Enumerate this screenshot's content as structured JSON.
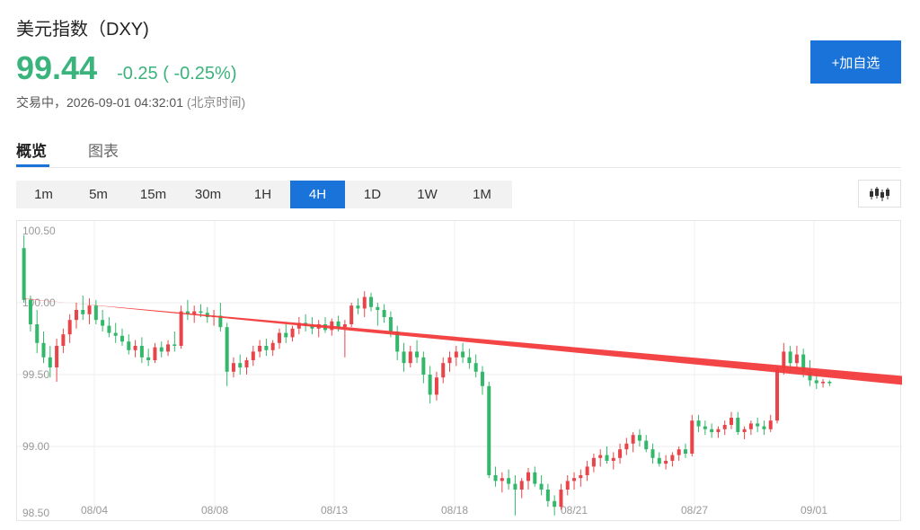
{
  "header": {
    "title": "美元指数（DXY)",
    "price": "99.44",
    "change": "-0.25 ( -0.25%)",
    "status_label": "交易中，",
    "timestamp": "2026-09-01 04:32:01",
    "timezone": "(北京时间)",
    "add_button": "+加自选"
  },
  "tabs": [
    {
      "label": "概览",
      "active": true
    },
    {
      "label": "图表",
      "active": false
    }
  ],
  "periods": [
    {
      "label": "1m",
      "active": false
    },
    {
      "label": "5m",
      "active": false
    },
    {
      "label": "15m",
      "active": false
    },
    {
      "label": "30m",
      "active": false
    },
    {
      "label": "1H",
      "active": false
    },
    {
      "label": "4H",
      "active": true
    },
    {
      "label": "1D",
      "active": false
    },
    {
      "label": "1W",
      "active": false
    },
    {
      "label": "1M",
      "active": false
    }
  ],
  "chart_type_icon": "candlestick-icon",
  "colors": {
    "up": "#e8454a",
    "down": "#33b86b",
    "accent": "#1a73d9",
    "arrow": "#f23b3b"
  },
  "chart_data": {
    "type": "candlestick",
    "y_ticks": [
      "100.50",
      "100.00",
      "99.50",
      "99.00",
      "98.50"
    ],
    "x_ticks": [
      "08/04",
      "08/08",
      "08/13",
      "08/18",
      "08/21",
      "08/27",
      "09/01"
    ],
    "ylim": [
      98.5,
      100.5
    ],
    "grid": true,
    "annotation": {
      "type": "arrow",
      "from": [
        0,
        100.03
      ],
      "to": [
        143,
        99.43
      ]
    },
    "candles": [
      [
        100.38,
        100.47,
        100.0,
        100.02
      ],
      [
        100.02,
        100.05,
        99.8,
        99.85
      ],
      [
        99.85,
        99.95,
        99.65,
        99.72
      ],
      [
        99.72,
        99.8,
        99.58,
        99.62
      ],
      [
        99.62,
        99.7,
        99.48,
        99.55
      ],
      [
        99.55,
        99.75,
        99.45,
        99.7
      ],
      [
        99.7,
        99.82,
        99.65,
        99.78
      ],
      [
        99.78,
        99.92,
        99.72,
        99.88
      ],
      [
        99.88,
        100.0,
        99.82,
        99.95
      ],
      [
        99.95,
        100.05,
        99.88,
        99.92
      ],
      [
        99.92,
        100.03,
        99.85,
        99.98
      ],
      [
        99.98,
        100.02,
        99.85,
        99.88
      ],
      [
        99.88,
        99.95,
        99.8,
        99.84
      ],
      [
        99.84,
        99.9,
        99.76,
        99.79
      ],
      [
        99.79,
        99.86,
        99.72,
        99.77
      ],
      [
        99.77,
        99.82,
        99.7,
        99.73
      ],
      [
        99.73,
        99.78,
        99.64,
        99.67
      ],
      [
        99.67,
        99.74,
        99.62,
        99.7
      ],
      [
        99.7,
        99.76,
        99.58,
        99.62
      ],
      [
        99.62,
        99.68,
        99.56,
        99.6
      ],
      [
        99.6,
        99.72,
        99.58,
        99.69
      ],
      [
        99.69,
        99.73,
        99.62,
        99.66
      ],
      [
        99.66,
        99.74,
        99.63,
        99.71
      ],
      [
        99.71,
        99.8,
        99.66,
        99.7
      ],
      [
        99.7,
        99.98,
        99.68,
        99.94
      ],
      [
        99.94,
        100.02,
        99.88,
        99.92
      ],
      [
        99.92,
        99.98,
        99.86,
        99.94
      ],
      [
        99.94,
        99.99,
        99.9,
        99.93
      ],
      [
        99.93,
        99.97,
        99.86,
        99.9
      ],
      [
        99.9,
        99.95,
        99.84,
        99.91
      ],
      [
        99.91,
        100.0,
        99.8,
        99.83
      ],
      [
        99.83,
        99.86,
        99.42,
        99.52
      ],
      [
        99.52,
        99.62,
        99.48,
        99.58
      ],
      [
        99.58,
        99.64,
        99.5,
        99.55
      ],
      [
        99.55,
        99.62,
        99.5,
        99.6
      ],
      [
        99.6,
        99.7,
        99.56,
        99.66
      ],
      [
        99.66,
        99.74,
        99.62,
        99.7
      ],
      [
        99.7,
        99.75,
        99.63,
        99.67
      ],
      [
        99.67,
        99.74,
        99.63,
        99.72
      ],
      [
        99.72,
        99.82,
        99.68,
        99.79
      ],
      [
        99.79,
        99.85,
        99.72,
        99.76
      ],
      [
        99.76,
        99.84,
        99.73,
        99.82
      ],
      [
        99.82,
        99.9,
        99.78,
        99.86
      ],
      [
        99.86,
        99.92,
        99.8,
        99.84
      ],
      [
        99.84,
        99.9,
        99.78,
        99.82
      ],
      [
        99.82,
        99.88,
        99.76,
        99.85
      ],
      [
        99.85,
        99.9,
        99.79,
        99.81
      ],
      [
        99.81,
        99.89,
        99.77,
        99.87
      ],
      [
        99.87,
        99.91,
        99.8,
        99.83
      ],
      [
        99.83,
        99.88,
        99.62,
        99.85
      ],
      [
        99.85,
        100.0,
        99.83,
        99.98
      ],
      [
        99.98,
        100.03,
        99.92,
        99.96
      ],
      [
        99.96,
        100.08,
        99.9,
        100.04
      ],
      [
        100.04,
        100.07,
        99.94,
        99.97
      ],
      [
        99.97,
        100.0,
        99.84,
        99.95
      ],
      [
        99.95,
        99.99,
        99.86,
        99.9
      ],
      [
        99.9,
        99.94,
        99.76,
        99.8
      ],
      [
        99.8,
        99.84,
        99.6,
        99.66
      ],
      [
        99.66,
        99.72,
        99.52,
        99.58
      ],
      [
        99.58,
        99.7,
        99.55,
        99.66
      ],
      [
        99.66,
        99.74,
        99.58,
        99.62
      ],
      [
        99.62,
        99.66,
        99.44,
        99.5
      ],
      [
        99.5,
        99.56,
        99.3,
        99.36
      ],
      [
        99.36,
        99.52,
        99.32,
        99.48
      ],
      [
        99.48,
        99.62,
        99.44,
        99.58
      ],
      [
        99.58,
        99.66,
        99.52,
        99.62
      ],
      [
        99.62,
        99.7,
        99.56,
        99.66
      ],
      [
        99.66,
        99.72,
        99.58,
        99.62
      ],
      [
        99.62,
        99.68,
        99.54,
        99.58
      ],
      [
        99.58,
        99.64,
        99.48,
        99.52
      ],
      [
        99.52,
        99.56,
        99.36,
        99.42
      ],
      [
        99.42,
        99.45,
        98.78,
        98.8
      ],
      [
        98.8,
        98.86,
        98.72,
        98.76
      ],
      [
        98.76,
        98.82,
        98.68,
        98.78
      ],
      [
        98.78,
        98.84,
        98.7,
        98.74
      ],
      [
        98.74,
        98.8,
        98.52,
        98.7
      ],
      [
        98.7,
        98.78,
        98.64,
        98.76
      ],
      [
        98.76,
        98.85,
        98.7,
        98.82
      ],
      [
        98.82,
        98.86,
        98.72,
        98.74
      ],
      [
        98.74,
        98.8,
        98.66,
        98.7
      ],
      [
        98.7,
        98.74,
        98.58,
        98.62
      ],
      [
        98.62,
        98.66,
        98.52,
        98.58
      ],
      [
        98.58,
        98.74,
        98.56,
        98.7
      ],
      [
        98.7,
        98.8,
        98.66,
        98.76
      ],
      [
        98.76,
        98.82,
        98.7,
        98.78
      ],
      [
        98.78,
        98.84,
        98.72,
        98.8
      ],
      [
        98.8,
        98.9,
        98.76,
        98.86
      ],
      [
        98.86,
        98.95,
        98.82,
        98.92
      ],
      [
        98.92,
        98.98,
        98.86,
        98.94
      ],
      [
        98.94,
        99.0,
        98.88,
        98.9
      ],
      [
        98.9,
        98.96,
        98.84,
        98.92
      ],
      [
        98.92,
        99.02,
        98.88,
        98.98
      ],
      [
        98.98,
        99.06,
        98.94,
        99.02
      ],
      [
        99.02,
        99.1,
        98.96,
        99.08
      ],
      [
        99.08,
        99.12,
        99.0,
        99.04
      ],
      [
        99.04,
        99.08,
        98.96,
        98.98
      ],
      [
        98.98,
        99.02,
        98.88,
        98.92
      ],
      [
        98.92,
        98.96,
        98.86,
        98.88
      ],
      [
        98.88,
        98.94,
        98.84,
        98.9
      ],
      [
        98.9,
        98.96,
        98.86,
        98.94
      ],
      [
        98.94,
        99.0,
        98.9,
        98.98
      ],
      [
        98.98,
        99.02,
        98.92,
        98.95
      ],
      [
        98.95,
        99.22,
        98.93,
        99.18
      ],
      [
        99.18,
        99.22,
        99.1,
        99.14
      ],
      [
        99.14,
        99.18,
        99.08,
        99.12
      ],
      [
        99.12,
        99.16,
        99.06,
        99.1
      ],
      [
        99.1,
        99.14,
        99.06,
        99.12
      ],
      [
        99.12,
        99.18,
        99.08,
        99.15
      ],
      [
        99.15,
        99.24,
        99.12,
        99.2
      ],
      [
        99.2,
        99.24,
        99.08,
        99.1
      ],
      [
        99.1,
        99.14,
        99.05,
        99.12
      ],
      [
        99.12,
        99.18,
        99.08,
        99.16
      ],
      [
        99.16,
        99.2,
        99.1,
        99.14
      ],
      [
        99.14,
        99.18,
        99.08,
        99.12
      ],
      [
        99.12,
        99.22,
        99.1,
        99.18
      ],
      [
        99.18,
        99.56,
        99.16,
        99.54
      ],
      [
        99.54,
        99.72,
        99.5,
        99.66
      ],
      [
        99.66,
        99.7,
        99.52,
        99.58
      ],
      [
        99.58,
        99.7,
        99.54,
        99.64
      ],
      [
        99.64,
        99.68,
        99.48,
        99.52
      ],
      [
        99.52,
        99.6,
        99.42,
        99.46
      ],
      [
        99.46,
        99.52,
        99.4,
        99.44
      ],
      [
        99.44,
        99.47,
        99.41,
        99.45
      ],
      [
        99.45,
        99.46,
        99.42,
        99.44
      ]
    ]
  }
}
